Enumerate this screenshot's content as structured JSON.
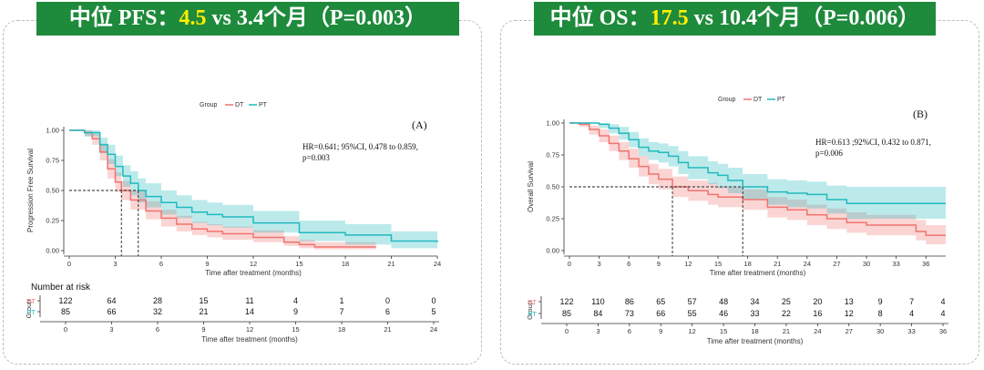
{
  "colors": {
    "DT": "#f07470",
    "PT": "#21b9be",
    "banner": "#1e8a3c",
    "highlight": "#ffee00"
  },
  "panels": [
    {
      "banner": {
        "prefix": "中位 PFS：",
        "highlight": "4.5",
        "suffix": " vs 3.4个月（P=0.003）"
      },
      "chart_data": {
        "type": "line",
        "legend_title": "Group",
        "legend": [
          "DT",
          "PT"
        ],
        "panel_label": "(A)",
        "annotation": [
          "HR=0.641; 95%CI, 0.478 to 0.859,",
          "p=0.003"
        ],
        "ylabel": "Progression Free Survival",
        "xlabel": "Time after treatment (months)",
        "xlim": [
          0,
          24
        ],
        "ylim": [
          0,
          1
        ],
        "xticks": [
          0,
          3,
          6,
          9,
          12,
          15,
          18,
          21,
          24
        ],
        "yticks": [
          "0.00",
          "0.25",
          "0.50",
          "0.75",
          "1.00"
        ],
        "medians": [
          3.4,
          4.5
        ],
        "series": [
          {
            "name": "DT",
            "x": [
              0,
              1,
              1.5,
              2,
              2.5,
              3,
              3.4,
              4,
              5,
              6,
              7,
              8,
              9,
              10,
              12,
              14,
              15,
              16,
              18,
              20
            ],
            "y": [
              1.0,
              0.98,
              0.93,
              0.82,
              0.68,
              0.57,
              0.5,
              0.42,
              0.33,
              0.27,
              0.22,
              0.18,
              0.16,
              0.14,
              0.11,
              0.07,
              0.05,
              0.03,
              0.03,
              0.03
            ],
            "ci_low": [
              1.0,
              0.95,
              0.88,
              0.75,
              0.6,
              0.49,
              0.42,
              0.34,
              0.26,
              0.2,
              0.16,
              0.13,
              0.11,
              0.09,
              0.07,
              0.04,
              0.02,
              0.01,
              0.01,
              0.01
            ],
            "ci_high": [
              1.0,
              1.0,
              0.97,
              0.89,
              0.76,
              0.65,
              0.58,
              0.5,
              0.41,
              0.34,
              0.29,
              0.24,
              0.22,
              0.2,
              0.17,
              0.12,
              0.09,
              0.07,
              0.07,
              0.07
            ]
          },
          {
            "name": "PT",
            "x": [
              0,
              1,
              2,
              2.5,
              3,
              3.5,
              4,
              4.5,
              5,
              6,
              7,
              8,
              9,
              10,
              12,
              15,
              18,
              21,
              24
            ],
            "y": [
              1.0,
              0.98,
              0.88,
              0.8,
              0.7,
              0.62,
              0.56,
              0.5,
              0.45,
              0.4,
              0.36,
              0.32,
              0.3,
              0.28,
              0.23,
              0.15,
              0.13,
              0.08,
              0.07
            ],
            "ci_low": [
              1.0,
              0.95,
              0.81,
              0.72,
              0.62,
              0.53,
              0.46,
              0.4,
              0.36,
              0.3,
              0.27,
              0.23,
              0.21,
              0.19,
              0.15,
              0.08,
              0.05,
              0.02,
              0.02
            ],
            "ci_high": [
              1.0,
              1.0,
              0.94,
              0.88,
              0.79,
              0.71,
              0.66,
              0.6,
              0.56,
              0.5,
              0.46,
              0.42,
              0.4,
              0.38,
              0.33,
              0.25,
              0.22,
              0.16,
              0.15
            ]
          }
        ],
        "risk_table": {
          "title": "Number at risk",
          "group_label": "Group",
          "xlabel": "Time after treatment (months)",
          "ticks": [
            0,
            3,
            6,
            9,
            12,
            15,
            18,
            21,
            24
          ],
          "rows": [
            {
              "name": "DT",
              "values": [
                "122",
                "64",
                "28",
                "15",
                "11",
                "4",
                "1",
                "0",
                "0"
              ]
            },
            {
              "name": "PT",
              "values": [
                "85",
                "66",
                "32",
                "21",
                "14",
                "9",
                "7",
                "6",
                "5"
              ]
            }
          ]
        }
      }
    },
    {
      "banner": {
        "prefix": "中位 OS：",
        "highlight": "17.5",
        "suffix": " vs 10.4个月（P=0.006）"
      },
      "chart_data": {
        "type": "line",
        "legend_title": "Group",
        "legend": [
          "DT",
          "PT"
        ],
        "panel_label": "(B)",
        "annotation": [
          "HR=0.613 ;92%CI, 0.432 to 0.871,",
          "p=0.006"
        ],
        "ylabel": "Overall Survival",
        "xlabel": "Time after treatment (months)",
        "xlim": [
          0,
          38
        ],
        "ylim": [
          0,
          1
        ],
        "xticks": [
          0,
          3,
          6,
          9,
          12,
          15,
          18,
          21,
          24,
          27,
          30,
          33,
          36
        ],
        "yticks": [
          "0.00",
          "0.25",
          "0.50",
          "0.75",
          "1.00"
        ],
        "medians": [
          10.4,
          17.5
        ],
        "series": [
          {
            "name": "DT",
            "x": [
              0,
              1,
              2,
              3,
              4,
              5,
              6,
              7,
              8,
              9,
              10.4,
              12,
              14,
              15,
              17.5,
              20,
              22,
              24,
              26,
              28,
              30,
              33,
              35,
              36,
              38
            ],
            "y": [
              1.0,
              0.99,
              0.95,
              0.9,
              0.84,
              0.78,
              0.72,
              0.66,
              0.6,
              0.56,
              0.5,
              0.47,
              0.44,
              0.42,
              0.4,
              0.34,
              0.32,
              0.28,
              0.25,
              0.22,
              0.2,
              0.2,
              0.15,
              0.12,
              0.12
            ],
            "ci_low": [
              1.0,
              0.97,
              0.91,
              0.85,
              0.78,
              0.71,
              0.65,
              0.58,
              0.52,
              0.48,
              0.42,
              0.39,
              0.36,
              0.34,
              0.32,
              0.26,
              0.24,
              0.2,
              0.17,
              0.14,
              0.12,
              0.12,
              0.08,
              0.05,
              0.05
            ],
            "ci_high": [
              1.0,
              1.0,
              0.98,
              0.95,
              0.9,
              0.85,
              0.8,
              0.74,
              0.68,
              0.64,
              0.58,
              0.55,
              0.53,
              0.5,
              0.48,
              0.42,
              0.4,
              0.36,
              0.33,
              0.3,
              0.28,
              0.28,
              0.24,
              0.2,
              0.2
            ]
          },
          {
            "name": "PT",
            "x": [
              0,
              2,
              3,
              4,
              5,
              6,
              7,
              8,
              9,
              10,
              11,
              12,
              14,
              15,
              16,
              17.5,
              20,
              22,
              24,
              26,
              28,
              30,
              33,
              36,
              38
            ],
            "y": [
              1.0,
              1.0,
              0.99,
              0.96,
              0.92,
              0.87,
              0.81,
              0.78,
              0.77,
              0.74,
              0.69,
              0.65,
              0.61,
              0.59,
              0.55,
              0.5,
              0.46,
              0.45,
              0.44,
              0.4,
              0.37,
              0.37,
              0.37,
              0.37,
              0.37
            ],
            "ci_low": [
              1.0,
              1.0,
              0.96,
              0.92,
              0.87,
              0.81,
              0.74,
              0.71,
              0.69,
              0.66,
              0.6,
              0.56,
              0.52,
              0.49,
              0.45,
              0.4,
              0.36,
              0.34,
              0.33,
              0.29,
              0.25,
              0.25,
              0.25,
              0.25,
              0.25
            ],
            "ci_high": [
              1.0,
              1.0,
              1.0,
              0.99,
              0.97,
              0.93,
              0.88,
              0.85,
              0.84,
              0.82,
              0.78,
              0.74,
              0.7,
              0.68,
              0.65,
              0.6,
              0.56,
              0.55,
              0.54,
              0.51,
              0.5,
              0.5,
              0.5,
              0.5,
              0.5
            ]
          }
        ],
        "risk_table": {
          "title": "",
          "group_label": "Group",
          "xlabel": "Time after treatment (months)",
          "ticks": [
            0,
            3,
            6,
            9,
            12,
            15,
            18,
            21,
            24,
            27,
            30,
            33,
            36
          ],
          "rows": [
            {
              "name": "DT",
              "values": [
                "122",
                "110",
                "86",
                "65",
                "57",
                "48",
                "34",
                "25",
                "20",
                "13",
                "9",
                "7",
                "4"
              ]
            },
            {
              "name": "PT",
              "values": [
                "85",
                "84",
                "73",
                "66",
                "55",
                "46",
                "33",
                "22",
                "16",
                "12",
                "8",
                "4",
                "4"
              ]
            }
          ]
        }
      }
    }
  ]
}
